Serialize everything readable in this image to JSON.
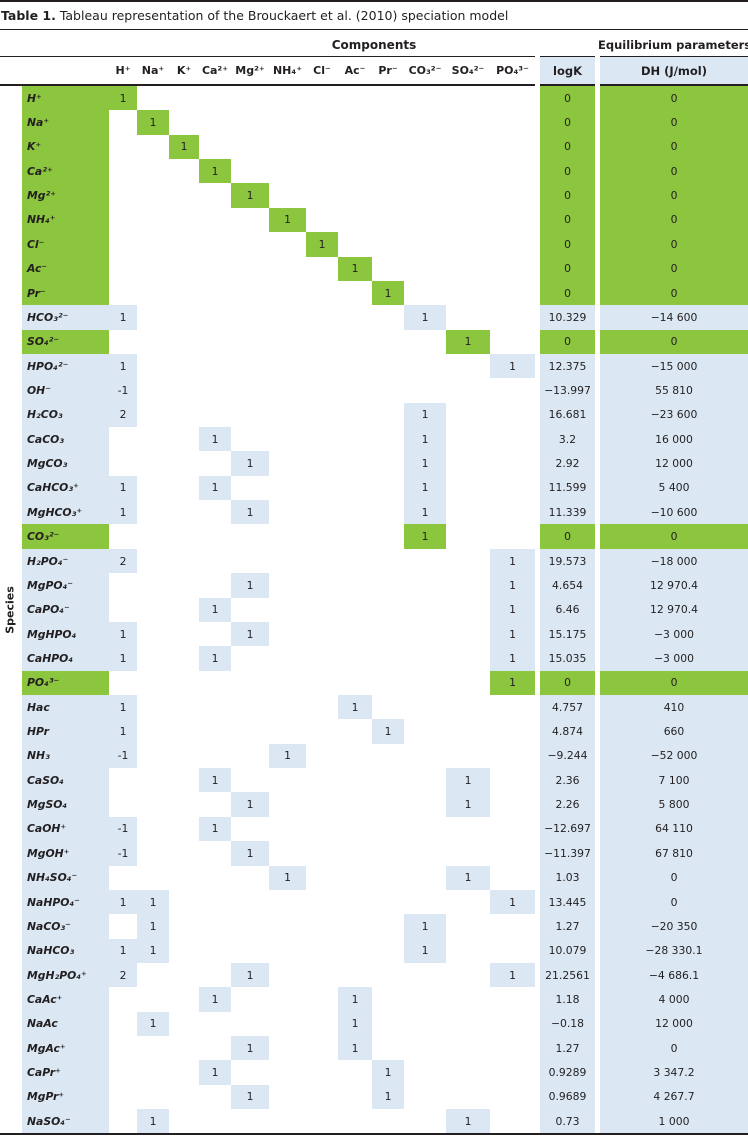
{
  "title": {
    "prefix": "Table 1.",
    "text": " Tableau representation of the Brouckaert et al. (2010) speciation model"
  },
  "colors": {
    "green": "#8cc63f",
    "blue": "#dbe8f4",
    "ink": "#231f20"
  },
  "table": {
    "group_headers": {
      "components": "Components",
      "equilibrium": "Equilibrium parameters"
    },
    "axis_label": "Species",
    "column_ids": [
      "h",
      "na",
      "k",
      "ca",
      "mg",
      "nh4",
      "cl",
      "ac",
      "pr",
      "co3",
      "so4",
      "po4"
    ],
    "column_headers": [
      "H⁺",
      "Na⁺",
      "K⁺",
      "Ca²⁺",
      "Mg²⁺",
      "NH₄⁺",
      "Cl⁻",
      "Ac⁻",
      "Pr⁻",
      "CO₃²⁻",
      "SO₄²⁻",
      "PO₄³⁻"
    ],
    "logk_header": "logK",
    "dh_header": "DH (J/mol)",
    "rows": [
      {
        "species": "H⁺",
        "green": true,
        "coeffs": [
          "1",
          "",
          "",
          "",
          "",
          "",
          "",
          "",
          "",
          "",
          "",
          ""
        ],
        "logk": "0",
        "dh": "0"
      },
      {
        "species": "Na⁺",
        "green": true,
        "coeffs": [
          "",
          "1",
          "",
          "",
          "",
          "",
          "",
          "",
          "",
          "",
          "",
          ""
        ],
        "logk": "0",
        "dh": "0"
      },
      {
        "species": "K⁺",
        "green": true,
        "coeffs": [
          "",
          "",
          "1",
          "",
          "",
          "",
          "",
          "",
          "",
          "",
          "",
          ""
        ],
        "logk": "0",
        "dh": "0"
      },
      {
        "species": "Ca²⁺",
        "green": true,
        "coeffs": [
          "",
          "",
          "",
          "1",
          "",
          "",
          "",
          "",
          "",
          "",
          "",
          ""
        ],
        "logk": "0",
        "dh": "0"
      },
      {
        "species": "Mg²⁺",
        "green": true,
        "coeffs": [
          "",
          "",
          "",
          "",
          "1",
          "",
          "",
          "",
          "",
          "",
          "",
          ""
        ],
        "logk": "0",
        "dh": "0"
      },
      {
        "species": "NH₄⁺",
        "green": true,
        "coeffs": [
          "",
          "",
          "",
          "",
          "",
          "1",
          "",
          "",
          "",
          "",
          "",
          ""
        ],
        "logk": "0",
        "dh": "0"
      },
      {
        "species": "Cl⁻",
        "green": true,
        "coeffs": [
          "",
          "",
          "",
          "",
          "",
          "",
          "1",
          "",
          "",
          "",
          "",
          ""
        ],
        "logk": "0",
        "dh": "0"
      },
      {
        "species": "Ac⁻",
        "green": true,
        "coeffs": [
          "",
          "",
          "",
          "",
          "",
          "",
          "",
          "1",
          "",
          "",
          "",
          ""
        ],
        "logk": "0",
        "dh": "0"
      },
      {
        "species": "Pr⁻",
        "green": true,
        "coeffs": [
          "",
          "",
          "",
          "",
          "",
          "",
          "",
          "",
          "1",
          "",
          "",
          ""
        ],
        "logk": "0",
        "dh": "0"
      },
      {
        "species": "HCO₃²⁻",
        "green": false,
        "coeffs": [
          "1",
          "",
          "",
          "",
          "",
          "",
          "",
          "",
          "",
          "1",
          "",
          ""
        ],
        "logk": "10.329",
        "dh": "−14 600"
      },
      {
        "species": "SO₄²⁻",
        "green": true,
        "coeffs": [
          "",
          "",
          "",
          "",
          "",
          "",
          "",
          "",
          "",
          "",
          "1",
          ""
        ],
        "logk": "0",
        "dh": "0"
      },
      {
        "species": "HPO₄²⁻",
        "green": false,
        "coeffs": [
          "1",
          "",
          "",
          "",
          "",
          "",
          "",
          "",
          "",
          "",
          "",
          "1"
        ],
        "logk": "12.375",
        "dh": "−15 000"
      },
      {
        "species": "OH⁻",
        "green": false,
        "coeffs": [
          "-1",
          "",
          "",
          "",
          "",
          "",
          "",
          "",
          "",
          "",
          "",
          ""
        ],
        "logk": "−13.997",
        "dh": "55 810"
      },
      {
        "species": "H₂CO₃",
        "green": false,
        "coeffs": [
          "2",
          "",
          "",
          "",
          "",
          "",
          "",
          "",
          "",
          "1",
          "",
          ""
        ],
        "logk": "16.681",
        "dh": "−23 600"
      },
      {
        "species": "CaCO₃",
        "green": false,
        "coeffs": [
          "",
          "",
          "",
          "1",
          "",
          "",
          "",
          "",
          "",
          "1",
          "",
          ""
        ],
        "logk": "3.2",
        "dh": "16 000"
      },
      {
        "species": "MgCO₃",
        "green": false,
        "coeffs": [
          "",
          "",
          "",
          "",
          "1",
          "",
          "",
          "",
          "",
          "1",
          "",
          ""
        ],
        "logk": "2.92",
        "dh": "12 000"
      },
      {
        "species": "CaHCO₃⁺",
        "green": false,
        "coeffs": [
          "1",
          "",
          "",
          "1",
          "",
          "",
          "",
          "",
          "",
          "1",
          "",
          ""
        ],
        "logk": "11.599",
        "dh": "5 400"
      },
      {
        "species": "MgHCO₃⁺",
        "green": false,
        "coeffs": [
          "1",
          "",
          "",
          "",
          "1",
          "",
          "",
          "",
          "",
          "1",
          "",
          ""
        ],
        "logk": "11.339",
        "dh": "−10 600"
      },
      {
        "species": "CO₃²⁻",
        "green": true,
        "coeffs": [
          "",
          "",
          "",
          "",
          "",
          "",
          "",
          "",
          "",
          "1",
          "",
          ""
        ],
        "logk": "0",
        "dh": "0"
      },
      {
        "species": "H₂PO₄⁻",
        "green": false,
        "coeffs": [
          "2",
          "",
          "",
          "",
          "",
          "",
          "",
          "",
          "",
          "",
          "",
          "1"
        ],
        "logk": "19.573",
        "dh": "−18 000"
      },
      {
        "species": "MgPO₄⁻",
        "green": false,
        "coeffs": [
          "",
          "",
          "",
          "",
          "1",
          "",
          "",
          "",
          "",
          "",
          "",
          "1"
        ],
        "logk": "4.654",
        "dh": "12 970.4"
      },
      {
        "species": "CaPO₄⁻",
        "green": false,
        "coeffs": [
          "",
          "",
          "",
          "1",
          "",
          "",
          "",
          "",
          "",
          "",
          "",
          "1"
        ],
        "logk": "6.46",
        "dh": "12 970.4"
      },
      {
        "species": "MgHPO₄",
        "green": false,
        "coeffs": [
          "1",
          "",
          "",
          "",
          "1",
          "",
          "",
          "",
          "",
          "",
          "",
          "1"
        ],
        "logk": "15.175",
        "dh": "−3 000"
      },
      {
        "species": "CaHPO₄",
        "green": false,
        "coeffs": [
          "1",
          "",
          "",
          "1",
          "",
          "",
          "",
          "",
          "",
          "",
          "",
          "1"
        ],
        "logk": "15.035",
        "dh": "−3 000"
      },
      {
        "species": "PO₄³⁻",
        "green": true,
        "coeffs": [
          "",
          "",
          "",
          "",
          "",
          "",
          "",
          "",
          "",
          "",
          "",
          "1"
        ],
        "logk": "0",
        "dh": "0"
      },
      {
        "species": "Hac",
        "green": false,
        "coeffs": [
          "1",
          "",
          "",
          "",
          "",
          "",
          "",
          "1",
          "",
          "",
          "",
          ""
        ],
        "logk": "4.757",
        "dh": "410"
      },
      {
        "species": "HPr",
        "green": false,
        "coeffs": [
          "1",
          "",
          "",
          "",
          "",
          "",
          "",
          "",
          "1",
          "",
          "",
          ""
        ],
        "logk": "4.874",
        "dh": "660"
      },
      {
        "species": "NH₃",
        "green": false,
        "coeffs": [
          "-1",
          "",
          "",
          "",
          "",
          "1",
          "",
          "",
          "",
          "",
          "",
          ""
        ],
        "logk": "−9.244",
        "dh": "−52 000"
      },
      {
        "species": "CaSO₄",
        "green": false,
        "coeffs": [
          "",
          "",
          "",
          "1",
          "",
          "",
          "",
          "",
          "",
          "",
          "1",
          ""
        ],
        "logk": "2.36",
        "dh": "7 100"
      },
      {
        "species": "MgSO₄",
        "green": false,
        "coeffs": [
          "",
          "",
          "",
          "",
          "1",
          "",
          "",
          "",
          "",
          "",
          "1",
          ""
        ],
        "logk": "2.26",
        "dh": "5 800"
      },
      {
        "species": "CaOH⁺",
        "green": false,
        "coeffs": [
          "-1",
          "",
          "",
          "1",
          "",
          "",
          "",
          "",
          "",
          "",
          "",
          ""
        ],
        "logk": "−12.697",
        "dh": "64 110"
      },
      {
        "species": "MgOH⁺",
        "green": false,
        "coeffs": [
          "-1",
          "",
          "",
          "",
          "1",
          "",
          "",
          "",
          "",
          "",
          "",
          ""
        ],
        "logk": "−11.397",
        "dh": "67 810"
      },
      {
        "species": "NH₄SO₄⁻",
        "green": false,
        "coeffs": [
          "",
          "",
          "",
          "",
          "",
          "1",
          "",
          "",
          "",
          "",
          "1",
          ""
        ],
        "logk": "1.03",
        "dh": "0"
      },
      {
        "species": "NaHPO₄⁻",
        "green": false,
        "coeffs": [
          "1",
          "1",
          "",
          "",
          "",
          "",
          "",
          "",
          "",
          "",
          "",
          "1"
        ],
        "logk": "13.445",
        "dh": "0"
      },
      {
        "species": "NaCO₃⁻",
        "green": false,
        "coeffs": [
          "",
          "1",
          "",
          "",
          "",
          "",
          "",
          "",
          "",
          "1",
          "",
          ""
        ],
        "logk": "1.27",
        "dh": "−20 350"
      },
      {
        "species": "NaHCO₃",
        "green": false,
        "coeffs": [
          "1",
          "1",
          "",
          "",
          "",
          "",
          "",
          "",
          "",
          "1",
          "",
          ""
        ],
        "logk": "10.079",
        "dh": "−28 330.1"
      },
      {
        "species": "MgH₂PO₄⁺",
        "green": false,
        "coeffs": [
          "2",
          "",
          "",
          "",
          "1",
          "",
          "",
          "",
          "",
          "",
          "",
          "1"
        ],
        "logk": "21.2561",
        "dh": "−4 686.1"
      },
      {
        "species": "CaAc⁺",
        "green": false,
        "coeffs": [
          "",
          "",
          "",
          "1",
          "",
          "",
          "",
          "1",
          "",
          "",
          "",
          ""
        ],
        "logk": "1.18",
        "dh": "4 000"
      },
      {
        "species": "NaAc",
        "green": false,
        "coeffs": [
          "",
          "1",
          "",
          "",
          "",
          "",
          "",
          "1",
          "",
          "",
          "",
          ""
        ],
        "logk": "−0.18",
        "dh": "12 000"
      },
      {
        "species": "MgAc⁺",
        "green": false,
        "coeffs": [
          "",
          "",
          "",
          "",
          "1",
          "",
          "",
          "1",
          "",
          "",
          "",
          ""
        ],
        "logk": "1.27",
        "dh": "0"
      },
      {
        "species": "CaPr⁺",
        "green": false,
        "coeffs": [
          "",
          "",
          "",
          "1",
          "",
          "",
          "",
          "",
          "1",
          "",
          "",
          ""
        ],
        "logk": "0.9289",
        "dh": "3 347.2"
      },
      {
        "species": "MgPr⁺",
        "green": false,
        "coeffs": [
          "",
          "",
          "",
          "",
          "1",
          "",
          "",
          "",
          "1",
          "",
          "",
          ""
        ],
        "logk": "0.9689",
        "dh": "4 267.7"
      },
      {
        "species": "NaSO₄⁻",
        "green": false,
        "coeffs": [
          "",
          "1",
          "",
          "",
          "",
          "",
          "",
          "",
          "",
          "",
          "1",
          ""
        ],
        "logk": "0.73",
        "dh": "1 000"
      }
    ]
  }
}
